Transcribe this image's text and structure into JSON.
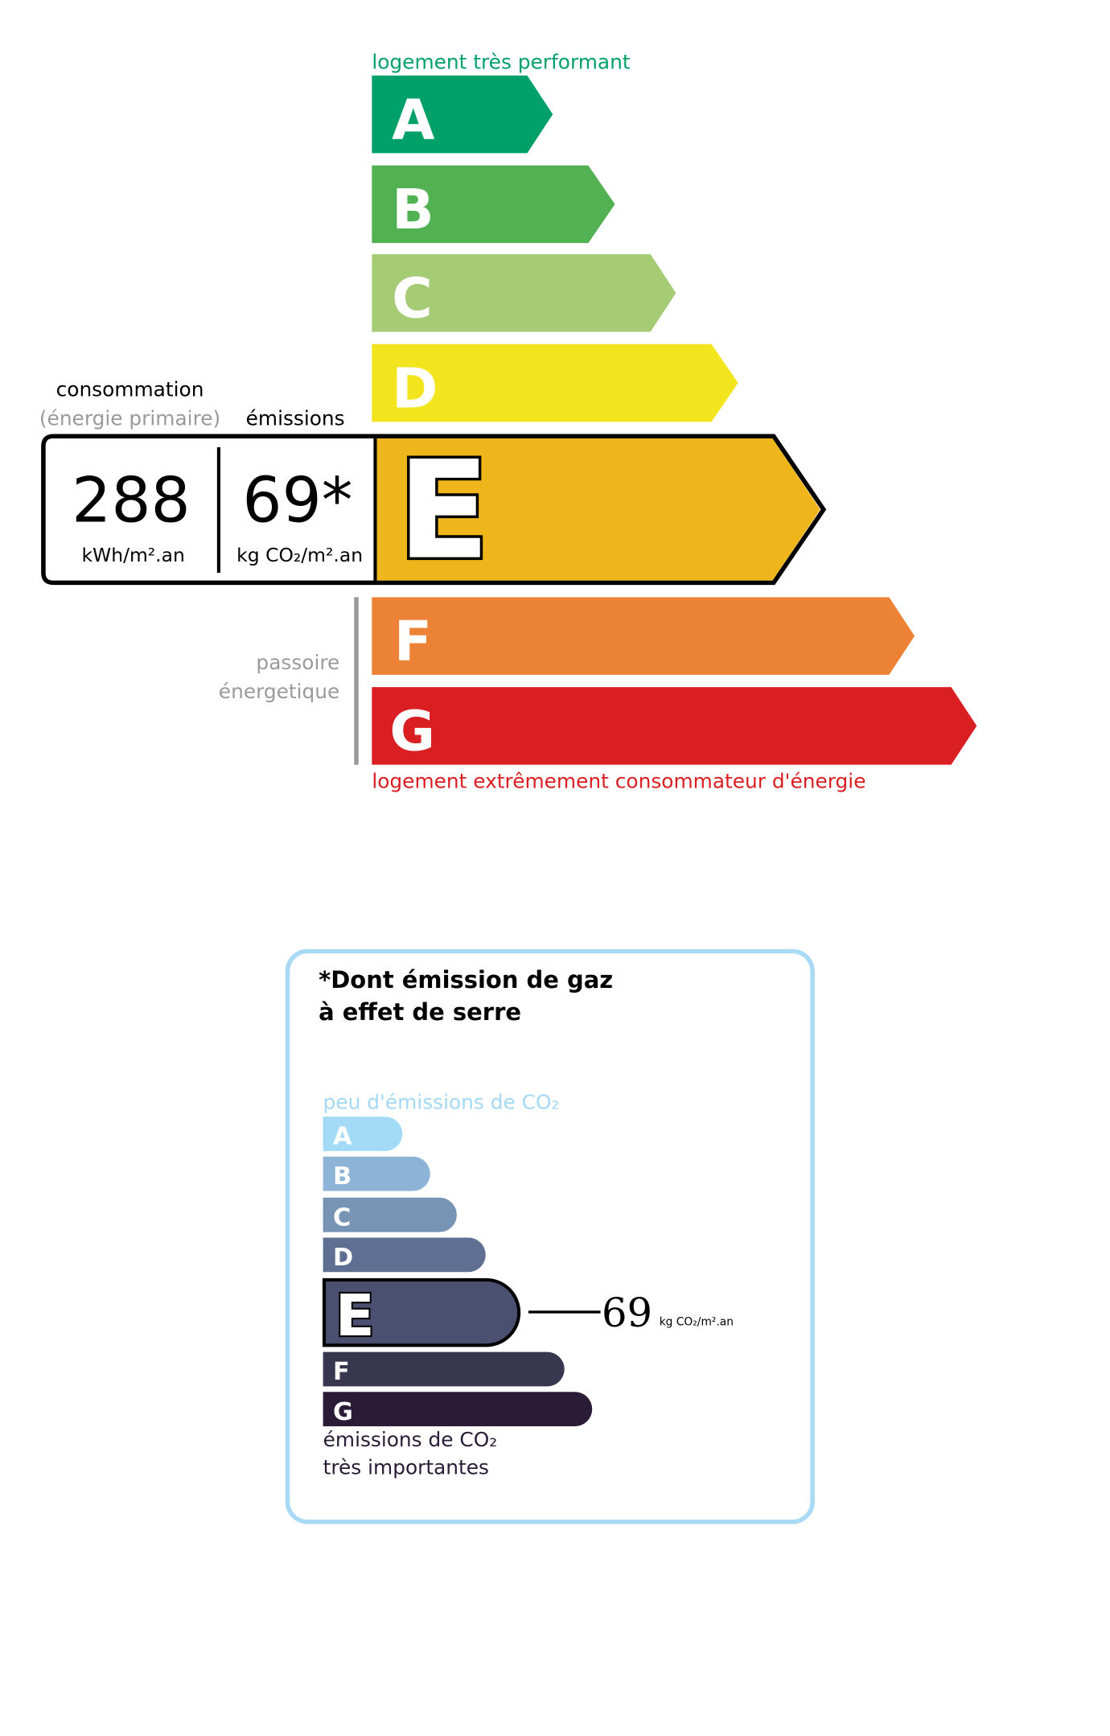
{
  "energy_label": {
    "top_caption": "logement très performant",
    "bottom_caption": "logement extrêmement consommateur d'énergie",
    "consumption_heading": "consommation",
    "consumption_subheading": "(énergie primaire)",
    "emissions_heading": "émissions",
    "consumption_value": "288",
    "consumption_unit": "kWh/m².an",
    "emissions_value": "69*",
    "emissions_unit": "kg CO₂/m².an",
    "passoire_line1": "passoire",
    "passoire_line2": "énergetique",
    "current_class": "E",
    "classes": [
      {
        "letter": "A",
        "color": "#00a06b"
      },
      {
        "letter": "B",
        "color": "#52b153"
      },
      {
        "letter": "C",
        "color": "#a5cc74"
      },
      {
        "letter": "D",
        "color": "#f2e51e"
      },
      {
        "letter": "E",
        "color": "#efb61b"
      },
      {
        "letter": "F",
        "color": "#ec8235"
      },
      {
        "letter": "G",
        "color": "#d91f22"
      }
    ],
    "top_caption_color": "#00a06b",
    "bottom_caption_color": "#d91f22"
  },
  "ghg_label": {
    "title_line1": "*Dont émission de gaz",
    "title_line2": "à effet de serre",
    "top_caption": "peu d'émissions de CO₂",
    "bottom_caption_line1": "émissions de CO₂",
    "bottom_caption_line2": "très importantes",
    "current_class": "E",
    "value": "69",
    "unit": "kg CO₂/m².an",
    "border_color": "#a8daf5",
    "classes": [
      {
        "letter": "A",
        "color": "#a3dbf6"
      },
      {
        "letter": "B",
        "color": "#8db4d6"
      },
      {
        "letter": "C",
        "color": "#7794b5"
      },
      {
        "letter": "D",
        "color": "#5f6f91"
      },
      {
        "letter": "E",
        "color": "#4c5070"
      },
      {
        "letter": "F",
        "color": "#39364f"
      },
      {
        "letter": "G",
        "color": "#2a1c36"
      }
    ]
  }
}
